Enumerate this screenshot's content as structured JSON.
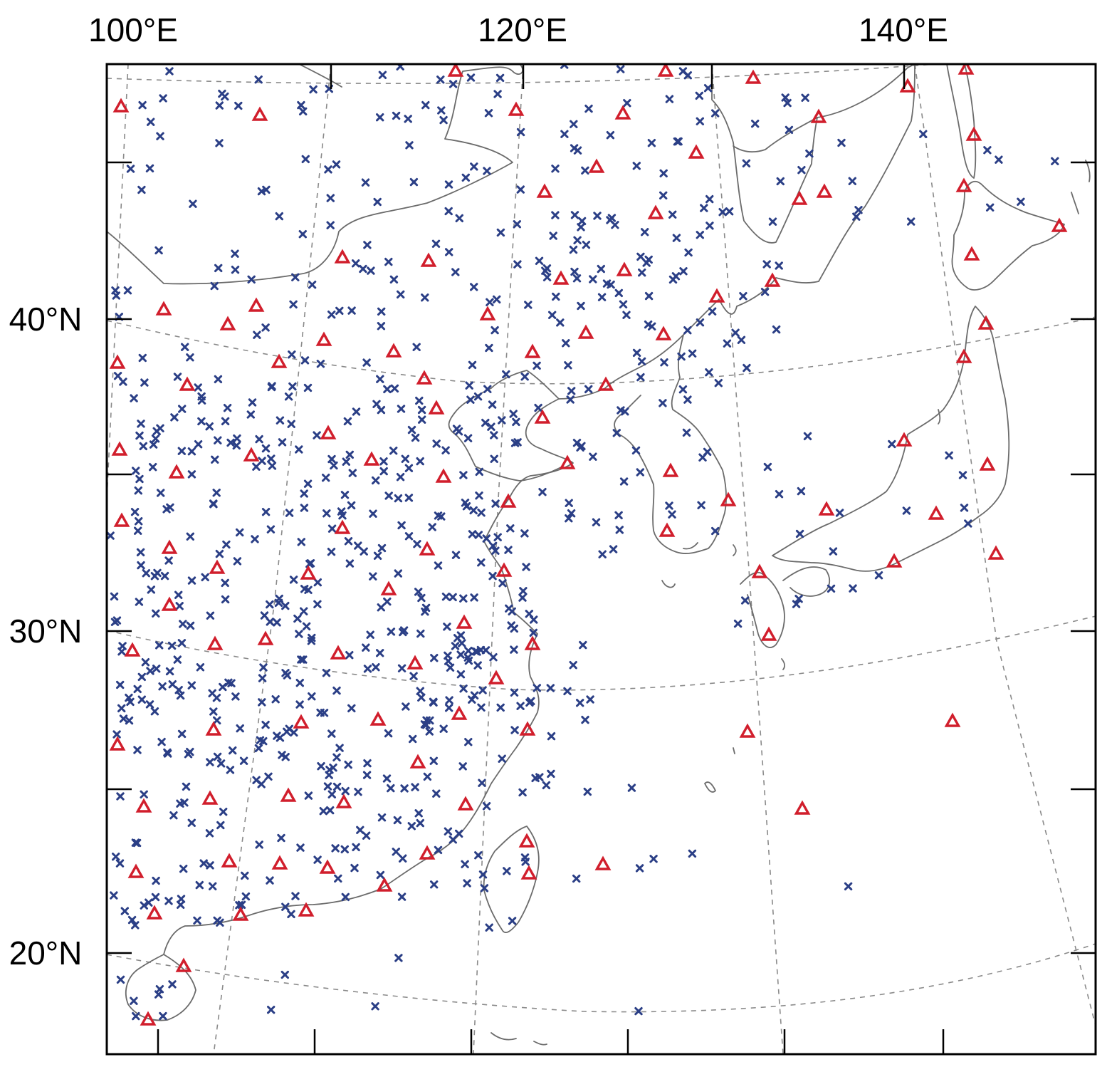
{
  "map": {
    "top_labels": [
      "100°E",
      "120°E",
      "140°E"
    ],
    "left_labels": [
      "40°N",
      "30°N",
      "20°N"
    ],
    "colors": {
      "cross_marker": "#2b3f86",
      "triangle_marker": "#d11e2c",
      "coastline": "#6b6b6b",
      "graticule": "#8a8a8a",
      "frame": "#000000"
    },
    "marker_types": [
      "cross",
      "triangle"
    ],
    "graticule_style": "dashed"
  }
}
